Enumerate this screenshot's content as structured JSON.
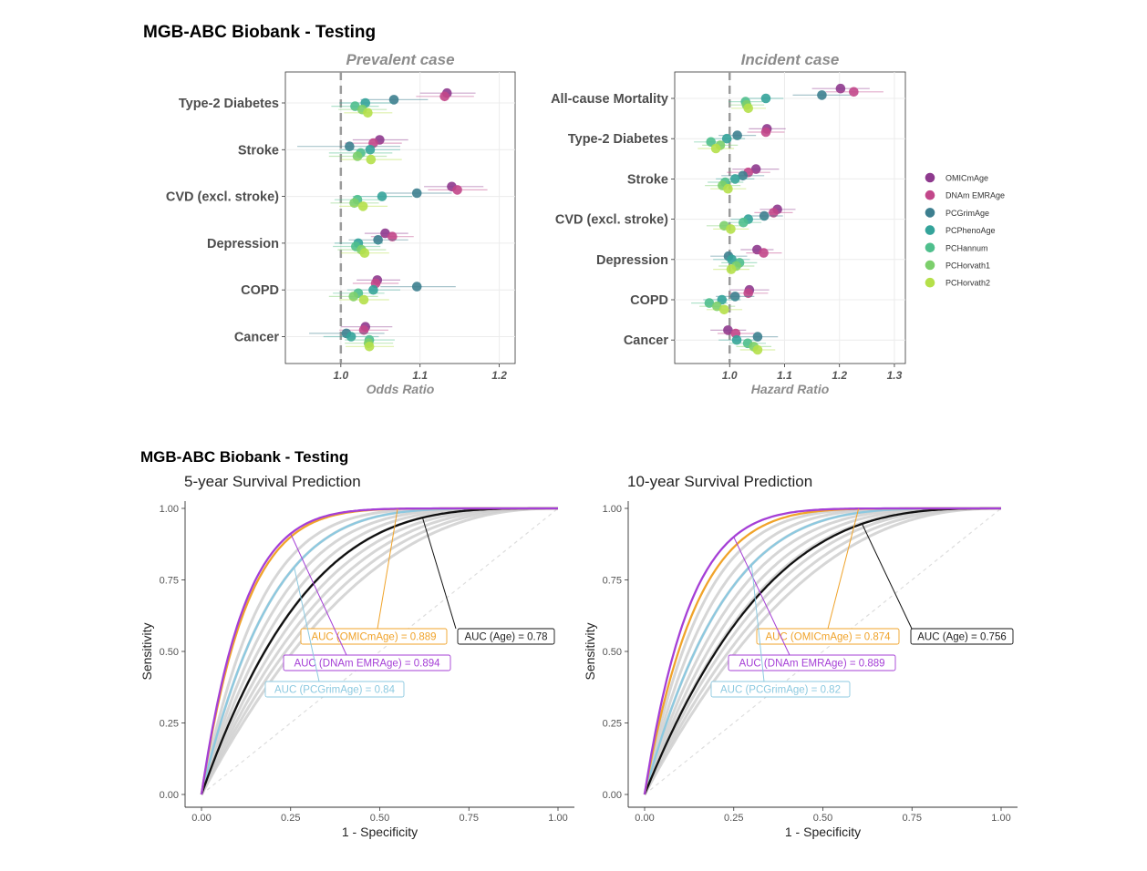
{
  "figure": {
    "section1_title": "MGB-ABC Biobank - Testing",
    "section2_title": "MGB-ABC Biobank - Testing"
  },
  "legend": {
    "items": [
      {
        "name": "OMICmAge",
        "color": "#8e3a8e"
      },
      {
        "name": "DNAm EMRAge",
        "color": "#c2478a"
      },
      {
        "name": "PCGrimAge",
        "color": "#3d7f8f"
      },
      {
        "name": "PCPhenoAge",
        "color": "#34a39a"
      },
      {
        "name": "PCHannum",
        "color": "#4fbf8d"
      },
      {
        "name": "PCHorvath1",
        "color": "#7ccf6c"
      },
      {
        "name": "PCHorvath2",
        "color": "#b5e04a"
      }
    ]
  },
  "chart_data": [
    {
      "type": "forest",
      "title": "Prevalent case",
      "xlabel": "Odds Ratio",
      "xlim": [
        0.93,
        1.22
      ],
      "xticks": [
        "1.0",
        "1.1",
        "1.2"
      ],
      "ref_line": 1.0,
      "categories": [
        "Type-2 Diabetes",
        "Stroke",
        "CVD (excl. stroke)",
        "Depression",
        "COPD",
        "Cancer"
      ],
      "series": [
        {
          "name": "OMICmAge",
          "values": [
            1.134,
            1.049,
            1.14,
            1.056,
            1.046,
            1.031
          ],
          "lower": [
            1.1,
            1.015,
            1.105,
            1.03,
            1.02,
            1.0
          ],
          "upper": [
            1.17,
            1.085,
            1.18,
            1.085,
            1.075,
            1.065
          ]
        },
        {
          "name": "DNAm EMRAge",
          "values": [
            1.131,
            1.041,
            1.147,
            1.065,
            1.044,
            1.029
          ],
          "lower": [
            1.095,
            1.005,
            1.11,
            1.038,
            1.015,
            0.998
          ],
          "upper": [
            1.168,
            1.077,
            1.185,
            1.092,
            1.073,
            1.06
          ]
        },
        {
          "name": "PCGrimAge",
          "values": [
            1.067,
            1.011,
            1.096,
            1.047,
            1.096,
            1.007
          ],
          "lower": [
            1.025,
            0.945,
            1.055,
            1.01,
            1.05,
            0.96
          ],
          "upper": [
            1.11,
            1.075,
            1.14,
            1.085,
            1.145,
            1.055
          ]
        },
        {
          "name": "PCPhenoAge",
          "values": [
            1.031,
            1.037,
            1.052,
            1.022,
            1.041,
            1.013
          ],
          "lower": [
            0.998,
            0.998,
            1.015,
            0.992,
            1.008,
            0.978
          ],
          "upper": [
            1.065,
            1.075,
            1.09,
            1.053,
            1.075,
            1.048
          ]
        },
        {
          "name": "PCHannum",
          "values": [
            1.018,
            1.025,
            1.021,
            1.019,
            1.022,
            1.036
          ],
          "lower": [
            0.988,
            0.985,
            0.992,
            0.99,
            0.99,
            1.005
          ],
          "upper": [
            1.048,
            1.065,
            1.051,
            1.05,
            1.055,
            1.068
          ]
        },
        {
          "name": "PCHorvath1",
          "values": [
            1.027,
            1.021,
            1.017,
            1.026,
            1.016,
            1.035
          ],
          "lower": [
            0.997,
            0.985,
            0.987,
            0.996,
            0.985,
            1.005
          ],
          "upper": [
            1.058,
            1.058,
            1.048,
            1.057,
            1.047,
            1.066
          ]
        },
        {
          "name": "PCHorvath2",
          "values": [
            1.034,
            1.038,
            1.028,
            1.03,
            1.029,
            1.036
          ],
          "lower": [
            1.004,
            1.0,
            0.998,
            1.0,
            0.998,
            1.006
          ],
          "upper": [
            1.065,
            1.077,
            1.059,
            1.061,
            1.061,
            1.067
          ]
        }
      ]
    },
    {
      "type": "forest",
      "title": "Incident case",
      "xlabel": "Hazard Ratio",
      "xlim": [
        0.9,
        1.32
      ],
      "xticks": [
        "1.0",
        "1.1",
        "1.2",
        "1.3"
      ],
      "ref_line": 1.0,
      "categories": [
        "All-cause Mortality",
        "Type-2 Diabetes",
        "Stroke",
        "CVD (excl. stroke)",
        "Depression",
        "COPD",
        "Cancer"
      ],
      "series": [
        {
          "name": "OMICmAge",
          "values": [
            1.202,
            1.068,
            1.048,
            1.087,
            1.05,
            1.036,
            0.997
          ],
          "lower": [
            1.15,
            1.035,
            1.005,
            1.055,
            1.02,
            1.0,
            0.965
          ],
          "upper": [
            1.255,
            1.102,
            1.09,
            1.12,
            1.08,
            1.072,
            1.03
          ]
        },
        {
          "name": "DNAm EMRAge",
          "values": [
            1.226,
            1.066,
            1.034,
            1.08,
            1.062,
            1.034,
            1.011
          ],
          "lower": [
            1.175,
            1.032,
            0.995,
            1.045,
            1.03,
            0.998,
            0.978
          ],
          "upper": [
            1.28,
            1.1,
            1.074,
            1.115,
            1.095,
            1.07,
            1.045
          ]
        },
        {
          "name": "PCGrimAge",
          "values": [
            1.168,
            1.014,
            1.024,
            1.063,
            0.998,
            1.01,
            1.051
          ],
          "lower": [
            1.115,
            0.98,
            0.985,
            1.03,
            0.965,
            0.975,
            1.015
          ],
          "upper": [
            1.22,
            1.048,
            1.063,
            1.097,
            1.032,
            1.045,
            1.088
          ]
        },
        {
          "name": "PCPhenoAge",
          "values": [
            1.066,
            0.995,
            1.01,
            1.034,
            1.004,
            0.986,
            1.013
          ],
          "lower": [
            1.035,
            0.962,
            0.975,
            1.002,
            0.97,
            0.952,
            0.98
          ],
          "upper": [
            1.098,
            1.028,
            1.045,
            1.067,
            1.037,
            1.02,
            1.047
          ]
        },
        {
          "name": "PCHannum",
          "values": [
            1.029,
            0.966,
            0.992,
            1.025,
            1.018,
            0.963,
            1.033
          ],
          "lower": [
            0.998,
            0.935,
            0.96,
            0.993,
            0.985,
            0.93,
            1.0
          ],
          "upper": [
            1.06,
            0.998,
            1.025,
            1.058,
            1.05,
            0.996,
            1.066
          ]
        },
        {
          "name": "PCHorvath1",
          "values": [
            1.031,
            0.983,
            0.987,
            0.99,
            1.012,
            0.977,
            1.044
          ],
          "lower": [
            1.0,
            0.95,
            0.955,
            0.958,
            0.98,
            0.945,
            1.012
          ],
          "upper": [
            1.063,
            1.015,
            1.02,
            1.022,
            1.045,
            1.01,
            1.076
          ]
        },
        {
          "name": "PCHorvath2",
          "values": [
            1.034,
            0.975,
            0.997,
            1.002,
            1.003,
            0.99,
            1.051
          ],
          "lower": [
            1.003,
            0.942,
            0.965,
            0.97,
            0.97,
            0.958,
            1.019
          ],
          "upper": [
            1.066,
            1.008,
            1.03,
            1.035,
            1.036,
            1.023,
            1.083
          ]
        }
      ]
    },
    {
      "type": "roc",
      "title": "5-year Survival Prediction",
      "xlabel": "1 - Specificity",
      "ylabel": "Sensitivity",
      "xlim": [
        0,
        1
      ],
      "ylim": [
        0,
        1
      ],
      "xticks": [
        "0.00",
        "0.25",
        "0.50",
        "0.75",
        "1.00"
      ],
      "yticks": [
        "0.00",
        "0.25",
        "0.50",
        "0.75",
        "1.00"
      ],
      "series": [
        {
          "name": "OMICmAge",
          "auc": 0.889,
          "color": "#f0a32a",
          "label": "AUC (OMICmAge) = 0.889"
        },
        {
          "name": "DNAm EMRAge",
          "auc": 0.894,
          "color": "#a53fd6",
          "label": "AUC (DNAm EMRAge) = 0.894"
        },
        {
          "name": "PCGrimAge",
          "auc": 0.84,
          "color": "#8cc9e0",
          "label": "AUC (PCGrimAge) = 0.84"
        },
        {
          "name": "Age",
          "auc": 0.78,
          "color": "#111111",
          "label": "AUC (Age) = 0.78"
        }
      ]
    },
    {
      "type": "roc",
      "title": "10-year Survival Prediction",
      "xlabel": "1 - Specificity",
      "ylabel": "Sensitivity",
      "xlim": [
        0,
        1
      ],
      "ylim": [
        0,
        1
      ],
      "xticks": [
        "0.00",
        "0.25",
        "0.50",
        "0.75",
        "1.00"
      ],
      "yticks": [
        "0.00",
        "0.25",
        "0.50",
        "0.75",
        "1.00"
      ],
      "series": [
        {
          "name": "OMICmAge",
          "auc": 0.874,
          "color": "#f0a32a",
          "label": "AUC (OMICmAge) = 0.874"
        },
        {
          "name": "DNAm EMRAge",
          "auc": 0.889,
          "color": "#a53fd6",
          "label": "AUC (DNAm EMRAge) = 0.889"
        },
        {
          "name": "PCGrimAge",
          "auc": 0.82,
          "color": "#8cc9e0",
          "label": "AUC (PCGrimAge) = 0.82"
        },
        {
          "name": "Age",
          "auc": 0.756,
          "color": "#111111",
          "label": "AUC (Age) = 0.756"
        }
      ]
    }
  ]
}
